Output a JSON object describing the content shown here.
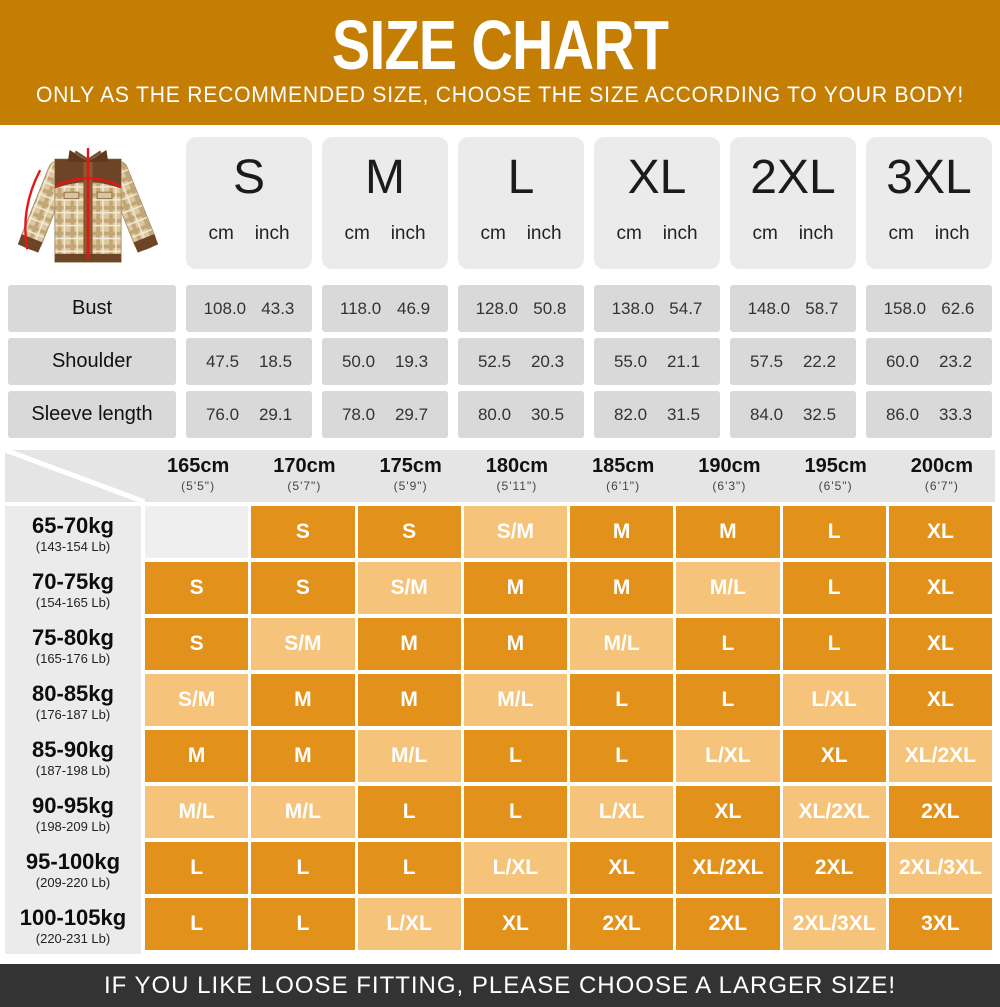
{
  "banner": {
    "title": "SIZE CHART",
    "subtitle": "ONLY AS THE RECOMMENDED SIZE, CHOOSE THE SIZE ACCORDING TO YOUR BODY!"
  },
  "colors": {
    "banner_bg": "#C57E04",
    "dark_cell": "#E2921B",
    "light_cell": "#F5C379",
    "footer_bg": "#333333"
  },
  "jacket": {
    "icon": "plaid-jacket-with-red-measurement-lines"
  },
  "size_table": {
    "sizes": [
      "S",
      "M",
      "L",
      "XL",
      "2XL",
      "3XL"
    ],
    "unit_labels": [
      "cm",
      "inch"
    ],
    "rows": [
      {
        "label": "Bust",
        "values": [
          [
            "108.0",
            "43.3"
          ],
          [
            "118.0",
            "46.9"
          ],
          [
            "128.0",
            "50.8"
          ],
          [
            "138.0",
            "54.7"
          ],
          [
            "148.0",
            "58.7"
          ],
          [
            "158.0",
            "62.6"
          ]
        ]
      },
      {
        "label": "Shoulder",
        "values": [
          [
            "47.5",
            "18.5"
          ],
          [
            "50.0",
            "19.3"
          ],
          [
            "52.5",
            "20.3"
          ],
          [
            "55.0",
            "21.1"
          ],
          [
            "57.5",
            "22.2"
          ],
          [
            "60.0",
            "23.2"
          ]
        ]
      },
      {
        "label": "Sleeve length",
        "values": [
          [
            "76.0",
            "29.1"
          ],
          [
            "78.0",
            "29.7"
          ],
          [
            "80.0",
            "30.5"
          ],
          [
            "82.0",
            "31.5"
          ],
          [
            "84.0",
            "32.5"
          ],
          [
            "86.0",
            "33.3"
          ]
        ]
      }
    ]
  },
  "fit_matrix": {
    "columns": [
      {
        "cm": "165cm",
        "ft": "(5'5\")"
      },
      {
        "cm": "170cm",
        "ft": "(5'7\")"
      },
      {
        "cm": "175cm",
        "ft": "(5'9\")"
      },
      {
        "cm": "180cm",
        "ft": "(5'11\")"
      },
      {
        "cm": "185cm",
        "ft": "(6'1\")"
      },
      {
        "cm": "190cm",
        "ft": "(6'3\")"
      },
      {
        "cm": "195cm",
        "ft": "(6'5\")"
      },
      {
        "cm": "200cm",
        "ft": "(6'7\")"
      }
    ],
    "rows": [
      {
        "kg": "65-70kg",
        "lb": "(143-154 Lb)",
        "cells": [
          {
            "t": "",
            "tone": "empty"
          },
          {
            "t": "S",
            "tone": "dark"
          },
          {
            "t": "S",
            "tone": "dark"
          },
          {
            "t": "S/M",
            "tone": "light"
          },
          {
            "t": "M",
            "tone": "dark"
          },
          {
            "t": "M",
            "tone": "dark"
          },
          {
            "t": "L",
            "tone": "dark"
          },
          {
            "t": "XL",
            "tone": "dark"
          }
        ]
      },
      {
        "kg": "70-75kg",
        "lb": "(154-165 Lb)",
        "cells": [
          {
            "t": "S",
            "tone": "dark"
          },
          {
            "t": "S",
            "tone": "dark"
          },
          {
            "t": "S/M",
            "tone": "light"
          },
          {
            "t": "M",
            "tone": "dark"
          },
          {
            "t": "M",
            "tone": "dark"
          },
          {
            "t": "M/L",
            "tone": "light"
          },
          {
            "t": "L",
            "tone": "dark"
          },
          {
            "t": "XL",
            "tone": "dark"
          }
        ]
      },
      {
        "kg": "75-80kg",
        "lb": "(165-176 Lb)",
        "cells": [
          {
            "t": "S",
            "tone": "dark"
          },
          {
            "t": "S/M",
            "tone": "light"
          },
          {
            "t": "M",
            "tone": "dark"
          },
          {
            "t": "M",
            "tone": "dark"
          },
          {
            "t": "M/L",
            "tone": "light"
          },
          {
            "t": "L",
            "tone": "dark"
          },
          {
            "t": "L",
            "tone": "dark"
          },
          {
            "t": "XL",
            "tone": "dark"
          }
        ]
      },
      {
        "kg": "80-85kg",
        "lb": "(176-187 Lb)",
        "cells": [
          {
            "t": "S/M",
            "tone": "light"
          },
          {
            "t": "M",
            "tone": "dark"
          },
          {
            "t": "M",
            "tone": "dark"
          },
          {
            "t": "M/L",
            "tone": "light"
          },
          {
            "t": "L",
            "tone": "dark"
          },
          {
            "t": "L",
            "tone": "dark"
          },
          {
            "t": "L/XL",
            "tone": "light"
          },
          {
            "t": "XL",
            "tone": "dark"
          }
        ]
      },
      {
        "kg": "85-90kg",
        "lb": "(187-198 Lb)",
        "cells": [
          {
            "t": "M",
            "tone": "dark"
          },
          {
            "t": "M",
            "tone": "dark"
          },
          {
            "t": "M/L",
            "tone": "light"
          },
          {
            "t": "L",
            "tone": "dark"
          },
          {
            "t": "L",
            "tone": "dark"
          },
          {
            "t": "L/XL",
            "tone": "light"
          },
          {
            "t": "XL",
            "tone": "dark"
          },
          {
            "t": "XL/2XL",
            "tone": "light"
          }
        ]
      },
      {
        "kg": "90-95kg",
        "lb": "(198-209 Lb)",
        "cells": [
          {
            "t": "M/L",
            "tone": "light"
          },
          {
            "t": "M/L",
            "tone": "light"
          },
          {
            "t": "L",
            "tone": "dark"
          },
          {
            "t": "L",
            "tone": "dark"
          },
          {
            "t": "L/XL",
            "tone": "light"
          },
          {
            "t": "XL",
            "tone": "dark"
          },
          {
            "t": "XL/2XL",
            "tone": "light"
          },
          {
            "t": "2XL",
            "tone": "dark"
          }
        ]
      },
      {
        "kg": "95-100kg",
        "lb": "(209-220 Lb)",
        "cells": [
          {
            "t": "L",
            "tone": "dark"
          },
          {
            "t": "L",
            "tone": "dark"
          },
          {
            "t": "L",
            "tone": "dark"
          },
          {
            "t": "L/XL",
            "tone": "light"
          },
          {
            "t": "XL",
            "tone": "dark"
          },
          {
            "t": "XL/2XL",
            "tone": "dark"
          },
          {
            "t": "2XL",
            "tone": "dark"
          },
          {
            "t": "2XL/3XL",
            "tone": "light"
          }
        ]
      },
      {
        "kg": "100-105kg",
        "lb": "(220-231 Lb)",
        "cells": [
          {
            "t": "L",
            "tone": "dark"
          },
          {
            "t": "L",
            "tone": "dark"
          },
          {
            "t": "L/XL",
            "tone": "light"
          },
          {
            "t": "XL",
            "tone": "dark"
          },
          {
            "t": "2XL",
            "tone": "dark"
          },
          {
            "t": "2XL",
            "tone": "dark"
          },
          {
            "t": "2XL/3XL",
            "tone": "light"
          },
          {
            "t": "3XL",
            "tone": "dark"
          }
        ]
      }
    ]
  },
  "footer": {
    "note": "IF YOU LIKE LOOSE FITTING, PLEASE CHOOSE A LARGER SIZE!"
  }
}
